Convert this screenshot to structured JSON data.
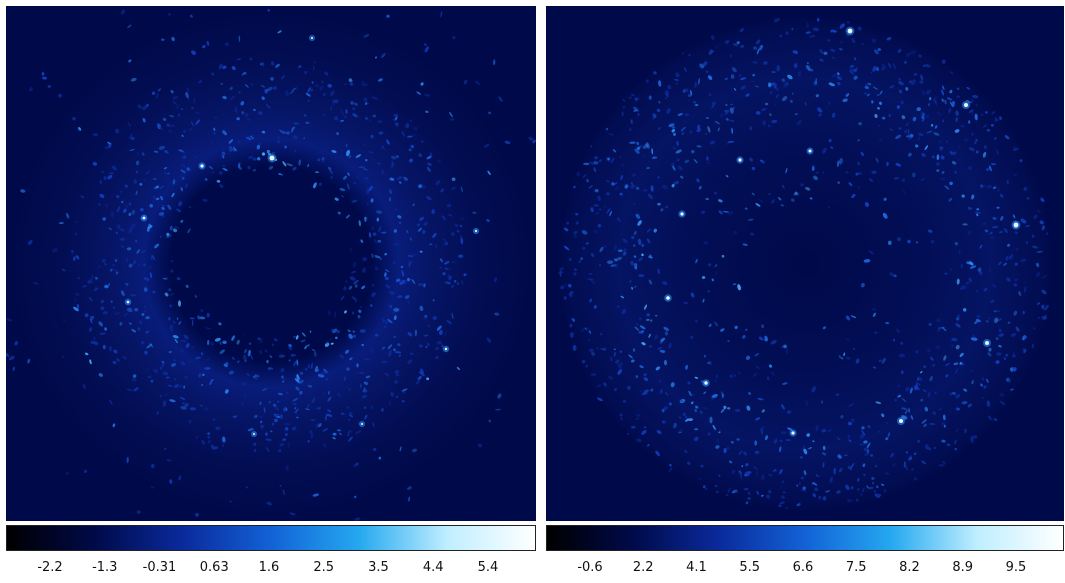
{
  "panels": [
    {
      "id": "left",
      "colorbar": {
        "ticks": [
          "-2.2",
          "-1.3",
          "-0.31",
          "0.63",
          "1.6",
          "2.5",
          "3.5",
          "4.4",
          "5.4"
        ],
        "gradient": [
          "#000000",
          "#000a4a",
          "#0a2a9c",
          "#1262d6",
          "#25a8f0",
          "#bfeeff",
          "#ffffff"
        ]
      }
    },
    {
      "id": "right",
      "colorbar": {
        "ticks": [
          "-0.6",
          "2.2",
          "4.1",
          "5.5",
          "6.6",
          "7.5",
          "8.2",
          "8.9",
          "9.5"
        ],
        "gradient": [
          "#000000",
          "#000a4a",
          "#0a2a9c",
          "#1262d6",
          "#25a8f0",
          "#bfeeff",
          "#ffffff"
        ]
      }
    }
  ],
  "colors": {
    "background": "#000a4a",
    "speckle": "#2a7cff",
    "bright_source": "#e6f7ff"
  }
}
